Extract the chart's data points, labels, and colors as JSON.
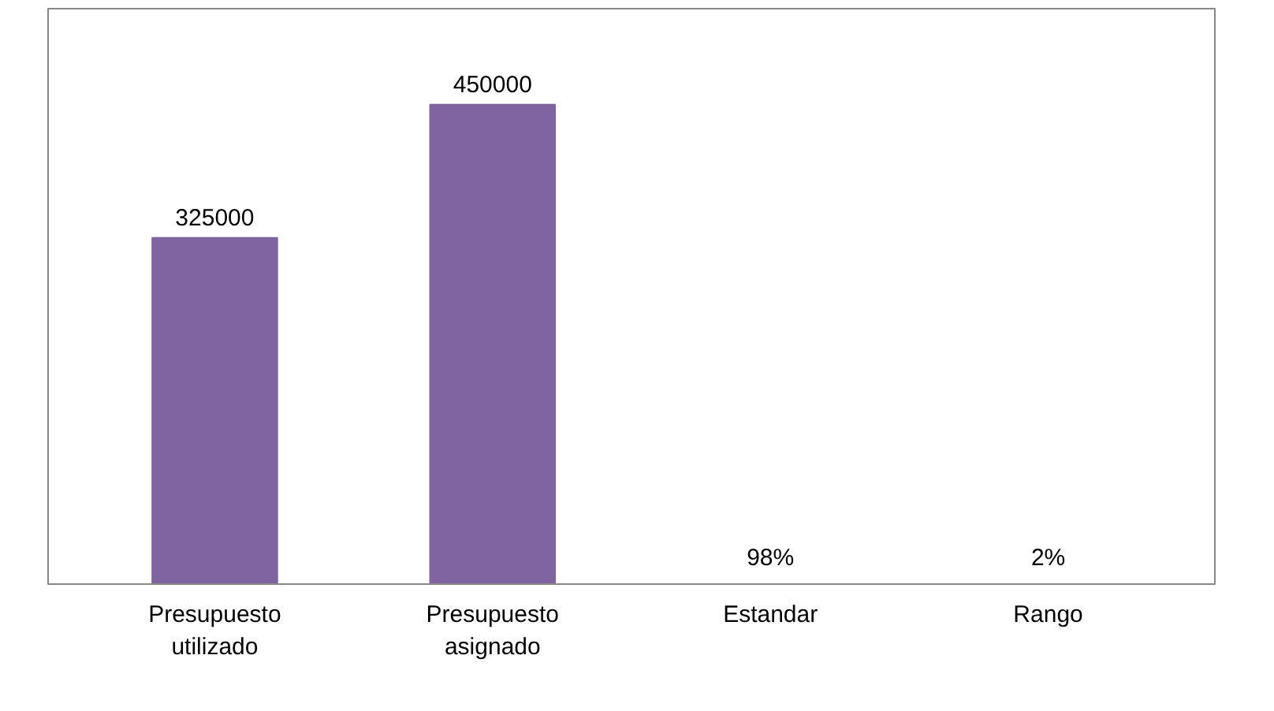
{
  "chart_data": {
    "type": "bar",
    "categories": [
      "Presupuesto utilizado",
      "Presupuesto asignado",
      "Estandar",
      "Rango"
    ],
    "values": [
      325000,
      450000,
      0.98,
      0.02
    ],
    "value_labels": [
      "325000",
      "450000",
      "98%",
      "2%"
    ],
    "color": "#8064a2",
    "grid": false
  }
}
